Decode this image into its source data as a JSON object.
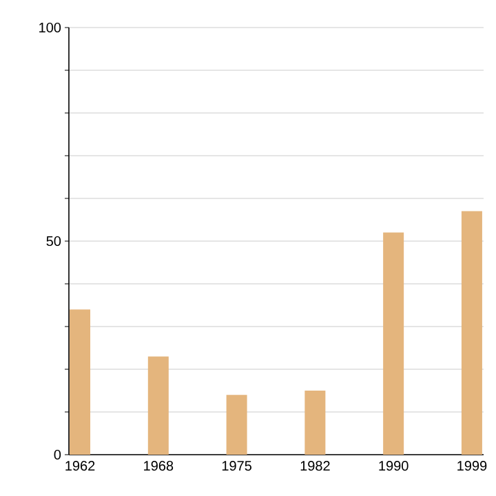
{
  "chart_data": {
    "type": "bar",
    "categories": [
      "1962",
      "1968",
      "1975",
      "1982",
      "1990",
      "1999"
    ],
    "values": [
      34,
      23,
      14,
      15,
      52,
      57
    ],
    "color": "#e4b57d",
    "ylim": [
      0,
      100
    ],
    "yticks": [
      0,
      {
        "value": 10,
        "label": null
      },
      {
        "value": 20,
        "label": null
      },
      {
        "value": 30,
        "label": null
      },
      {
        "value": 40,
        "label": null
      },
      50,
      {
        "value": 60,
        "label": null
      },
      {
        "value": 70,
        "label": null
      },
      {
        "value": 80,
        "label": null
      },
      {
        "value": 90,
        "label": null
      },
      100
    ],
    "grid": "y"
  }
}
